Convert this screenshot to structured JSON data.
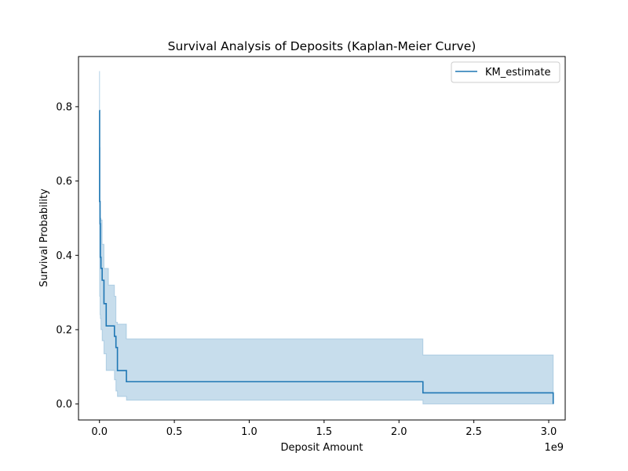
{
  "chart_data": {
    "type": "line",
    "title": "Survival Analysis of Deposits (Kaplan-Meier Curve)",
    "xlabel": "Deposit Amount",
    "ylabel": "Survival Probability",
    "x_offset_text": "1e9",
    "xlim": [
      -0.14,
      3.11
    ],
    "ylim": [
      -0.043,
      0.935
    ],
    "xticks": [
      0.0,
      0.5,
      1.0,
      1.5,
      2.0,
      2.5,
      3.0
    ],
    "xtick_labels": [
      "0.0",
      "0.5",
      "1.0",
      "1.5",
      "2.0",
      "2.5",
      "3.0"
    ],
    "yticks": [
      0.0,
      0.2,
      0.4,
      0.6,
      0.8
    ],
    "ytick_labels": [
      "0.0",
      "0.2",
      "0.4",
      "0.6",
      "0.8"
    ],
    "grid": false,
    "legend": {
      "position": "top-right",
      "entries": [
        "KM_estimate"
      ]
    },
    "colors": {
      "line": "#1f77b4",
      "band": "#1f77b4"
    },
    "series": [
      {
        "name": "KM_estimate",
        "step": "post",
        "x": [
          0.0,
          0.001,
          0.004,
          0.006,
          0.01,
          0.018,
          0.03,
          0.045,
          0.06,
          0.1,
          0.11,
          0.12,
          0.18,
          2.16,
          3.03
        ],
        "y": [
          0.79,
          0.545,
          0.485,
          0.395,
          0.365,
          0.333,
          0.27,
          0.21,
          0.21,
          0.182,
          0.152,
          0.09,
          0.06,
          0.03,
          0.0
        ],
        "lower": [
          0.55,
          0.29,
          0.24,
          0.23,
          0.2,
          0.17,
          0.135,
          0.09,
          0.09,
          0.065,
          0.035,
          0.02,
          0.01,
          0.0,
          0.0
        ],
        "upper": [
          0.895,
          0.69,
          0.52,
          0.5,
          0.495,
          0.43,
          0.365,
          0.365,
          0.32,
          0.29,
          0.22,
          0.215,
          0.175,
          0.132,
          0.132
        ]
      }
    ]
  }
}
